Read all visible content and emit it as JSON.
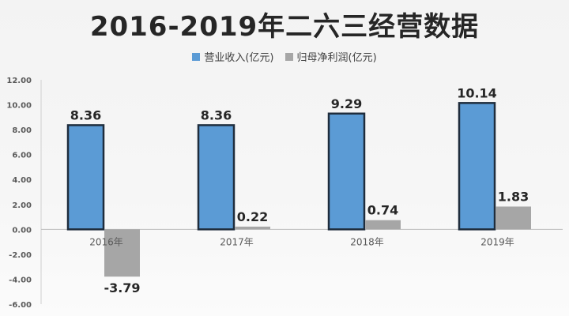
{
  "chart_data": {
    "type": "bar",
    "title": "2016-2019年二六三经营数据",
    "categories": [
      "2016年",
      "2017年",
      "2018年",
      "2019年"
    ],
    "series": [
      {
        "name": "营业收入(亿元)",
        "values": [
          8.36,
          8.36,
          9.29,
          10.14
        ],
        "color": "#5b9bd5"
      },
      {
        "name": "归母净利润(亿元)",
        "values": [
          -3.79,
          0.22,
          0.74,
          1.83
        ],
        "color": "#a6a6a6"
      }
    ],
    "data_labels": [
      [
        "8.36",
        "8.36",
        "9.29",
        "10.14"
      ],
      [
        "-3.79",
        "0.22",
        "0.74",
        "1.83"
      ]
    ],
    "ylim": [
      -6,
      12
    ],
    "yticks": [
      "12.00",
      "10.00",
      "8.00",
      "6.00",
      "4.00",
      "2.00",
      "0.00",
      "-2.00",
      "-4.00",
      "-6.00"
    ],
    "ytick_values": [
      12,
      10,
      8,
      6,
      4,
      2,
      0,
      -2,
      -4,
      -6
    ],
    "legend_position": "top",
    "grid": false
  }
}
